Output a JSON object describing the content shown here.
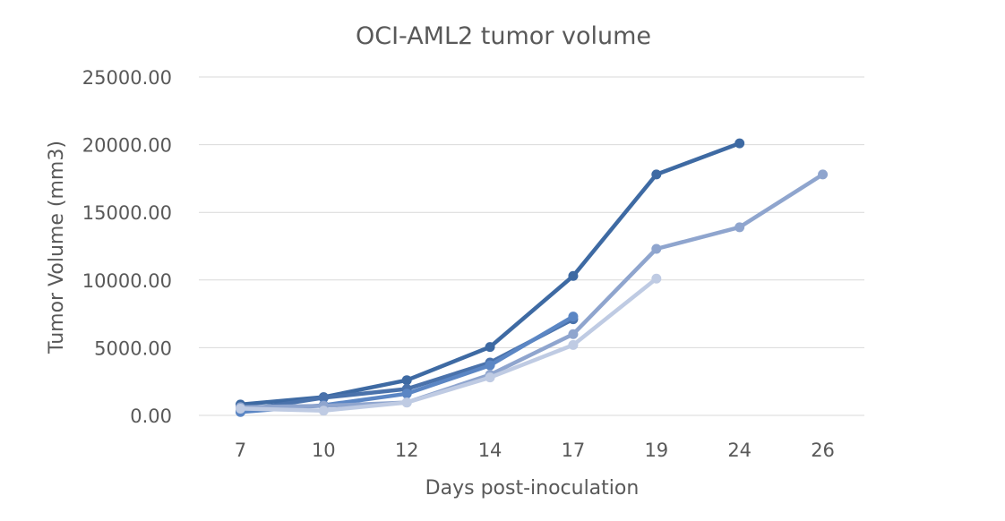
{
  "chart_data": {
    "type": "line",
    "title": "OCI-AML2 tumor volume",
    "xlabel": "Days post-inoculation",
    "ylabel": "Tumor Volume (mm3)",
    "categories": [
      "7",
      "10",
      "12",
      "14",
      "17",
      "19",
      "24",
      "26"
    ],
    "ylim": [
      0,
      25000
    ],
    "yticks": [
      0,
      5000,
      10000,
      15000,
      20000,
      25000
    ],
    "ytick_labels": [
      "0.00",
      "5000.00",
      "10000.00",
      "15000.00",
      "20000.00",
      "25000.00"
    ],
    "grid": true,
    "legend": "none",
    "series": [
      {
        "color": "#3e6aa3",
        "values": [
          800,
          1350,
          2600,
          5050,
          10300,
          17800,
          20100,
          null
        ]
      },
      {
        "color": "#4a72ab",
        "values": [
          350,
          1300,
          1950,
          3900,
          7100,
          null,
          null,
          null
        ]
      },
      {
        "color": "#5b86c4",
        "values": [
          250,
          750,
          1600,
          3700,
          7300,
          null,
          null,
          null
        ]
      },
      {
        "color": "#8fa5ce",
        "values": [
          600,
          700,
          950,
          3000,
          6000,
          12300,
          13900,
          17800
        ]
      },
      {
        "color": "#bfcbe3",
        "values": [
          500,
          350,
          950,
          2800,
          5200,
          10100,
          null,
          null
        ]
      }
    ]
  }
}
